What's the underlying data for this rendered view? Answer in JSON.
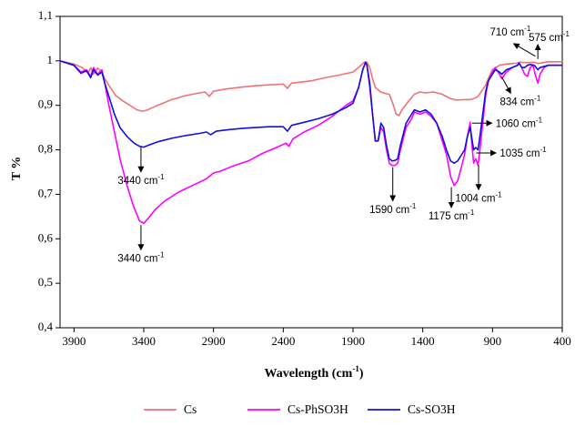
{
  "chart_data": {
    "type": "line",
    "title": "",
    "xlabel": "Wavelength (cm⁻¹)",
    "xlabel_main": "Wavelength (cm",
    "xlabel_sup": "-1",
    "xlabel_close": ")",
    "ylabel": "T %",
    "xlim": [
      4000,
      400
    ],
    "x_reversed": true,
    "ylim": [
      0.4,
      1.1
    ],
    "x_ticks": [
      3900,
      3400,
      2900,
      2400,
      1900,
      1400,
      900,
      400
    ],
    "y_ticks": [
      "0,4",
      "0,5",
      "0,6",
      "0,7",
      "0,8",
      "0,9",
      "1",
      "1,1"
    ],
    "grid": false,
    "legend_position": "bottom",
    "series": [
      {
        "name": "Cs",
        "color": "#f07272",
        "points": [
          [
            4000,
            1.0
          ],
          [
            3900,
            0.993
          ],
          [
            3840,
            0.985
          ],
          [
            3800,
            0.972
          ],
          [
            3780,
            0.985
          ],
          [
            3760,
            0.97
          ],
          [
            3730,
            0.984
          ],
          [
            3700,
            0.975
          ],
          [
            3680,
            0.96
          ],
          [
            3640,
            0.94
          ],
          [
            3600,
            0.922
          ],
          [
            3550,
            0.91
          ],
          [
            3500,
            0.9
          ],
          [
            3450,
            0.89
          ],
          [
            3410,
            0.887
          ],
          [
            3380,
            0.889
          ],
          [
            3300,
            0.9
          ],
          [
            3200,
            0.913
          ],
          [
            3100,
            0.922
          ],
          [
            3000,
            0.928
          ],
          [
            2960,
            0.93
          ],
          [
            2930,
            0.92
          ],
          [
            2900,
            0.932
          ],
          [
            2800,
            0.937
          ],
          [
            2700,
            0.941
          ],
          [
            2600,
            0.944
          ],
          [
            2500,
            0.946
          ],
          [
            2400,
            0.948
          ],
          [
            2370,
            0.938
          ],
          [
            2340,
            0.95
          ],
          [
            2200,
            0.955
          ],
          [
            2100,
            0.962
          ],
          [
            2000,
            0.968
          ],
          [
            1900,
            0.975
          ],
          [
            1850,
            0.988
          ],
          [
            1820,
            0.997
          ],
          [
            1800,
            0.997
          ],
          [
            1780,
            0.985
          ],
          [
            1760,
            0.96
          ],
          [
            1740,
            0.94
          ],
          [
            1720,
            0.935
          ],
          [
            1700,
            0.93
          ],
          [
            1680,
            0.928
          ],
          [
            1660,
            0.926
          ],
          [
            1640,
            0.925
          ],
          [
            1610,
            0.9
          ],
          [
            1590,
            0.88
          ],
          [
            1570,
            0.877
          ],
          [
            1550,
            0.89
          ],
          [
            1500,
            0.91
          ],
          [
            1460,
            0.925
          ],
          [
            1420,
            0.93
          ],
          [
            1380,
            0.928
          ],
          [
            1320,
            0.93
          ],
          [
            1260,
            0.925
          ],
          [
            1200,
            0.915
          ],
          [
            1160,
            0.912
          ],
          [
            1100,
            0.913
          ],
          [
            1060,
            0.913
          ],
          [
            1035,
            0.915
          ],
          [
            1004,
            0.92
          ],
          [
            950,
            0.945
          ],
          [
            920,
            0.968
          ],
          [
            900,
            0.98
          ],
          [
            850,
            0.99
          ],
          [
            800,
            0.993
          ],
          [
            720,
            0.995
          ],
          [
            710,
            0.997
          ],
          [
            650,
            0.996
          ],
          [
            600,
            0.997
          ],
          [
            575,
            0.994
          ],
          [
            500,
            0.998
          ],
          [
            400,
            0.998
          ]
        ]
      },
      {
        "name": "Cs-PhSO3H",
        "color": "#ff00ff",
        "points": [
          [
            4000,
            1.0
          ],
          [
            3900,
            0.99
          ],
          [
            3850,
            0.975
          ],
          [
            3810,
            0.98
          ],
          [
            3780,
            0.965
          ],
          [
            3760,
            0.985
          ],
          [
            3730,
            0.97
          ],
          [
            3700,
            0.98
          ],
          [
            3680,
            0.95
          ],
          [
            3650,
            0.9
          ],
          [
            3610,
            0.84
          ],
          [
            3570,
            0.78
          ],
          [
            3520,
            0.72
          ],
          [
            3470,
            0.67
          ],
          [
            3430,
            0.64
          ],
          [
            3400,
            0.635
          ],
          [
            3370,
            0.645
          ],
          [
            3320,
            0.665
          ],
          [
            3250,
            0.685
          ],
          [
            3150,
            0.705
          ],
          [
            3050,
            0.72
          ],
          [
            2950,
            0.735
          ],
          [
            2900,
            0.748
          ],
          [
            2850,
            0.752
          ],
          [
            2750,
            0.765
          ],
          [
            2650,
            0.775
          ],
          [
            2550,
            0.792
          ],
          [
            2450,
            0.805
          ],
          [
            2380,
            0.815
          ],
          [
            2360,
            0.808
          ],
          [
            2330,
            0.825
          ],
          [
            2250,
            0.84
          ],
          [
            2150,
            0.855
          ],
          [
            2050,
            0.875
          ],
          [
            1950,
            0.9
          ],
          [
            1900,
            0.91
          ],
          [
            1860,
            0.94
          ],
          [
            1830,
            0.98
          ],
          [
            1810,
            0.997
          ],
          [
            1800,
            0.99
          ],
          [
            1780,
            0.94
          ],
          [
            1760,
            0.88
          ],
          [
            1740,
            0.82
          ],
          [
            1720,
            0.82
          ],
          [
            1700,
            0.85
          ],
          [
            1680,
            0.84
          ],
          [
            1660,
            0.8
          ],
          [
            1640,
            0.77
          ],
          [
            1620,
            0.765
          ],
          [
            1600,
            0.765
          ],
          [
            1580,
            0.77
          ],
          [
            1560,
            0.8
          ],
          [
            1520,
            0.85
          ],
          [
            1480,
            0.87
          ],
          [
            1460,
            0.885
          ],
          [
            1420,
            0.88
          ],
          [
            1380,
            0.885
          ],
          [
            1340,
            0.875
          ],
          [
            1300,
            0.86
          ],
          [
            1260,
            0.82
          ],
          [
            1230,
            0.79
          ],
          [
            1200,
            0.74
          ],
          [
            1175,
            0.72
          ],
          [
            1150,
            0.73
          ],
          [
            1120,
            0.765
          ],
          [
            1100,
            0.79
          ],
          [
            1080,
            0.83
          ],
          [
            1060,
            0.862
          ],
          [
            1050,
            0.82
          ],
          [
            1035,
            0.77
          ],
          [
            1020,
            0.78
          ],
          [
            1004,
            0.765
          ],
          [
            990,
            0.8
          ],
          [
            970,
            0.86
          ],
          [
            950,
            0.92
          ],
          [
            930,
            0.955
          ],
          [
            900,
            0.975
          ],
          [
            880,
            0.985
          ],
          [
            850,
            0.97
          ],
          [
            834,
            0.96
          ],
          [
            800,
            0.975
          ],
          [
            760,
            0.985
          ],
          [
            720,
            0.99
          ],
          [
            710,
            0.995
          ],
          [
            690,
            0.985
          ],
          [
            670,
            0.97
          ],
          [
            650,
            0.965
          ],
          [
            630,
            0.985
          ],
          [
            610,
            0.99
          ],
          [
            590,
            0.965
          ],
          [
            575,
            0.95
          ],
          [
            560,
            0.97
          ],
          [
            530,
            0.985
          ],
          [
            500,
            0.99
          ],
          [
            450,
            0.99
          ],
          [
            400,
            0.99
          ]
        ]
      },
      {
        "name": "Cs-SO3H",
        "color": "#1010e0",
        "points": [
          [
            4000,
            1.0
          ],
          [
            3900,
            0.99
          ],
          [
            3850,
            0.972
          ],
          [
            3810,
            0.978
          ],
          [
            3780,
            0.962
          ],
          [
            3760,
            0.98
          ],
          [
            3730,
            0.968
          ],
          [
            3700,
            0.975
          ],
          [
            3680,
            0.95
          ],
          [
            3650,
            0.92
          ],
          [
            3610,
            0.88
          ],
          [
            3570,
            0.85
          ],
          [
            3520,
            0.83
          ],
          [
            3470,
            0.815
          ],
          [
            3430,
            0.808
          ],
          [
            3400,
            0.806
          ],
          [
            3370,
            0.81
          ],
          [
            3300,
            0.818
          ],
          [
            3200,
            0.826
          ],
          [
            3100,
            0.832
          ],
          [
            3000,
            0.837
          ],
          [
            2950,
            0.84
          ],
          [
            2920,
            0.834
          ],
          [
            2880,
            0.842
          ],
          [
            2800,
            0.845
          ],
          [
            2700,
            0.848
          ],
          [
            2600,
            0.85
          ],
          [
            2500,
            0.852
          ],
          [
            2400,
            0.852
          ],
          [
            2370,
            0.842
          ],
          [
            2340,
            0.855
          ],
          [
            2250,
            0.862
          ],
          [
            2150,
            0.87
          ],
          [
            2050,
            0.88
          ],
          [
            1950,
            0.895
          ],
          [
            1900,
            0.905
          ],
          [
            1860,
            0.94
          ],
          [
            1830,
            0.98
          ],
          [
            1810,
            0.997
          ],
          [
            1800,
            0.99
          ],
          [
            1780,
            0.95
          ],
          [
            1760,
            0.88
          ],
          [
            1740,
            0.82
          ],
          [
            1720,
            0.82
          ],
          [
            1700,
            0.86
          ],
          [
            1680,
            0.85
          ],
          [
            1660,
            0.81
          ],
          [
            1640,
            0.78
          ],
          [
            1620,
            0.775
          ],
          [
            1600,
            0.776
          ],
          [
            1580,
            0.78
          ],
          [
            1560,
            0.81
          ],
          [
            1520,
            0.86
          ],
          [
            1480,
            0.88
          ],
          [
            1460,
            0.89
          ],
          [
            1420,
            0.885
          ],
          [
            1380,
            0.89
          ],
          [
            1340,
            0.88
          ],
          [
            1300,
            0.86
          ],
          [
            1260,
            0.83
          ],
          [
            1230,
            0.8
          ],
          [
            1200,
            0.775
          ],
          [
            1175,
            0.77
          ],
          [
            1150,
            0.775
          ],
          [
            1120,
            0.79
          ],
          [
            1100,
            0.8
          ],
          [
            1080,
            0.83
          ],
          [
            1060,
            0.85
          ],
          [
            1050,
            0.83
          ],
          [
            1035,
            0.8
          ],
          [
            1020,
            0.805
          ],
          [
            1004,
            0.8
          ],
          [
            990,
            0.83
          ],
          [
            970,
            0.88
          ],
          [
            950,
            0.93
          ],
          [
            930,
            0.955
          ],
          [
            900,
            0.97
          ],
          [
            880,
            0.98
          ],
          [
            850,
            0.975
          ],
          [
            834,
            0.97
          ],
          [
            800,
            0.98
          ],
          [
            760,
            0.985
          ],
          [
            720,
            0.99
          ],
          [
            710,
            0.995
          ],
          [
            690,
            0.985
          ],
          [
            670,
            0.985
          ],
          [
            650,
            0.99
          ],
          [
            630,
            0.992
          ],
          [
            600,
            0.99
          ],
          [
            575,
            0.98
          ],
          [
            560,
            0.985
          ],
          [
            500,
            0.99
          ],
          [
            450,
            0.99
          ],
          [
            400,
            0.99
          ]
        ]
      }
    ],
    "annotations": [
      {
        "label": "3440 cm",
        "sup": "-1",
        "x": 3420,
        "y": 0.81,
        "dir": "down",
        "len": 0.06
      },
      {
        "label": "3440 cm",
        "sup": "-1",
        "x": 3420,
        "y": 0.635,
        "dir": "down",
        "len": 0.06
      },
      {
        "label": "1590 cm",
        "sup": "-1",
        "x": 1615,
        "y": 0.765,
        "dir": "down",
        "len": 0.08
      },
      {
        "label": "1175 cm",
        "sup": "-1",
        "x": 1195,
        "y": 0.72,
        "dir": "down",
        "len": 0.05
      },
      {
        "label": "1004 cm",
        "sup": "-1",
        "x": 1000,
        "y": 0.77,
        "dir": "down",
        "len": 0.06
      },
      {
        "label": "1060 cm",
        "sup": "-1",
        "x": 1060,
        "y": 0.86,
        "dir": "right",
        "len": 0.0
      },
      {
        "label": "1035 cm",
        "sup": "-1",
        "x": 1030,
        "y": 0.793,
        "dir": "right",
        "len": 0.0
      },
      {
        "label": "834 cm",
        "sup": "-1",
        "x": 834,
        "y": 0.968,
        "dir": "down-right",
        "len": 0.0
      },
      {
        "label": "710 cm",
        "sup": "-1",
        "x": 710,
        "y": 0.998,
        "dir": "up-left",
        "len": 0.0
      },
      {
        "label": "575 cm",
        "sup": "-1",
        "x": 575,
        "y": 1.0,
        "dir": "up",
        "len": 0.0
      }
    ]
  }
}
